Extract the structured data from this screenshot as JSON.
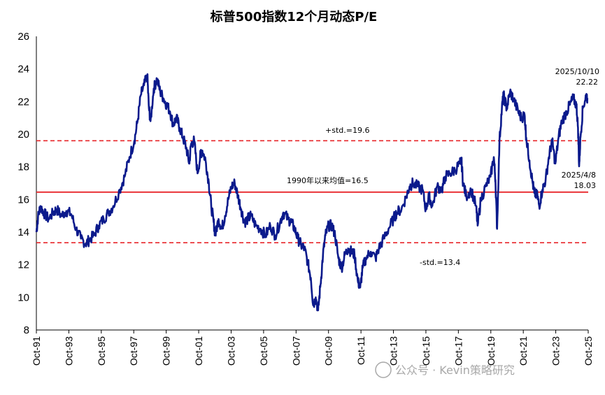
{
  "chart_data": {
    "type": "line",
    "title": "标普500指数12个月动态P/E",
    "ylim": [
      8,
      26
    ],
    "yticks": [
      "8",
      "10",
      "12",
      "14",
      "16",
      "18",
      "20",
      "22",
      "24",
      "26"
    ],
    "x_range": [
      1991.75,
      2025.83
    ],
    "xticks": [
      "Oct-91",
      "Oct-93",
      "Oct-95",
      "Oct-97",
      "Oct-99",
      "Oct-01",
      "Oct-03",
      "Oct-05",
      "Oct-07",
      "Oct-09",
      "Oct-11",
      "Oct-13",
      "Oct-15",
      "Oct-17",
      "Oct-19",
      "Oct-21",
      "Oct-23",
      "Oct-25"
    ],
    "reference_lines": {
      "upper": {
        "label": "+std.=19.6",
        "value": 19.6,
        "color": "#e8262a",
        "style": "dashed"
      },
      "mean": {
        "label": "1990年以来均值=16.5",
        "value": 16.45,
        "color": "#e8262a",
        "style": "solid"
      },
      "lower": {
        "label": "-std.=13.4",
        "value": 13.35,
        "color": "#e8262a",
        "style": "dashed"
      }
    },
    "annotations": [
      {
        "date": "2025/10/10",
        "value": "22.22"
      },
      {
        "date": "2025/4/8",
        "value": "18.03"
      }
    ],
    "series": [
      {
        "name": "S&P 500 forward 12M P/E",
        "color": "#0b1a8c",
        "points": [
          [
            1991.75,
            14.0
          ],
          [
            1991.85,
            14.9
          ],
          [
            1992.0,
            15.6
          ],
          [
            1992.2,
            15.2
          ],
          [
            1992.5,
            14.8
          ],
          [
            1992.8,
            15.2
          ],
          [
            1993.0,
            15.4
          ],
          [
            1993.3,
            15.0
          ],
          [
            1993.6,
            15.3
          ],
          [
            1993.9,
            15.1
          ],
          [
            1994.2,
            14.2
          ],
          [
            1994.5,
            13.6
          ],
          [
            1994.8,
            13.3
          ],
          [
            1995.0,
            13.5
          ],
          [
            1995.3,
            13.8
          ],
          [
            1995.6,
            14.4
          ],
          [
            1995.9,
            14.8
          ],
          [
            1996.2,
            15.2
          ],
          [
            1996.5,
            15.6
          ],
          [
            1996.9,
            16.6
          ],
          [
            1997.2,
            17.4
          ],
          [
            1997.5,
            18.6
          ],
          [
            1997.8,
            19.6
          ],
          [
            1998.0,
            20.8
          ],
          [
            1998.2,
            22.4
          ],
          [
            1998.4,
            23.0
          ],
          [
            1998.6,
            23.6
          ],
          [
            1998.7,
            21.6
          ],
          [
            1998.8,
            20.8
          ],
          [
            1999.0,
            22.8
          ],
          [
            1999.2,
            23.4
          ],
          [
            1999.4,
            22.6
          ],
          [
            1999.6,
            22.2
          ],
          [
            1999.8,
            21.8
          ],
          [
            2000.0,
            21.4
          ],
          [
            2000.2,
            20.6
          ],
          [
            2000.4,
            21.0
          ],
          [
            2000.6,
            20.4
          ],
          [
            2000.8,
            19.8
          ],
          [
            2001.0,
            19.2
          ],
          [
            2001.2,
            18.2
          ],
          [
            2001.3,
            19.4
          ],
          [
            2001.5,
            19.6
          ],
          [
            2001.7,
            17.6
          ],
          [
            2001.9,
            18.8
          ],
          [
            2002.0,
            19.0
          ],
          [
            2002.2,
            18.4
          ],
          [
            2002.4,
            17.0
          ],
          [
            2002.55,
            15.6
          ],
          [
            2002.7,
            14.6
          ],
          [
            2002.8,
            13.8
          ],
          [
            2003.0,
            14.8
          ],
          [
            2003.2,
            14.2
          ],
          [
            2003.4,
            15.0
          ],
          [
            2003.6,
            16.0
          ],
          [
            2003.8,
            16.8
          ],
          [
            2004.0,
            17.0
          ],
          [
            2004.2,
            16.2
          ],
          [
            2004.4,
            15.4
          ],
          [
            2004.6,
            14.6
          ],
          [
            2004.8,
            14.8
          ],
          [
            2005.0,
            15.0
          ],
          [
            2005.3,
            14.4
          ],
          [
            2005.6,
            14.2
          ],
          [
            2005.9,
            13.8
          ],
          [
            2006.2,
            14.4
          ],
          [
            2006.5,
            13.8
          ],
          [
            2006.8,
            14.6
          ],
          [
            2007.0,
            15.2
          ],
          [
            2007.3,
            14.8
          ],
          [
            2007.5,
            14.6
          ],
          [
            2007.7,
            14.2
          ],
          [
            2007.9,
            13.6
          ],
          [
            2008.1,
            13.2
          ],
          [
            2008.3,
            13.0
          ],
          [
            2008.5,
            12.2
          ],
          [
            2008.7,
            11.2
          ],
          [
            2008.85,
            9.5
          ],
          [
            2009.0,
            10.0
          ],
          [
            2009.15,
            9.2
          ],
          [
            2009.3,
            10.8
          ],
          [
            2009.45,
            12.6
          ],
          [
            2009.6,
            13.8
          ],
          [
            2009.8,
            14.4
          ],
          [
            2010.0,
            14.4
          ],
          [
            2010.2,
            13.8
          ],
          [
            2010.4,
            12.4
          ],
          [
            2010.6,
            11.8
          ],
          [
            2010.8,
            12.6
          ],
          [
            2011.0,
            13.0
          ],
          [
            2011.2,
            12.8
          ],
          [
            2011.4,
            12.6
          ],
          [
            2011.6,
            11.0
          ],
          [
            2011.75,
            10.6
          ],
          [
            2011.9,
            11.8
          ],
          [
            2012.1,
            12.4
          ],
          [
            2012.4,
            12.8
          ],
          [
            2012.7,
            12.4
          ],
          [
            2012.9,
            13.0
          ],
          [
            2013.2,
            13.6
          ],
          [
            2013.5,
            14.2
          ],
          [
            2013.8,
            14.8
          ],
          [
            2014.0,
            15.2
          ],
          [
            2014.3,
            15.4
          ],
          [
            2014.6,
            16.2
          ],
          [
            2014.8,
            16.8
          ],
          [
            2015.0,
            17.0
          ],
          [
            2015.3,
            16.8
          ],
          [
            2015.6,
            16.6
          ],
          [
            2015.8,
            15.4
          ],
          [
            2016.0,
            16.2
          ],
          [
            2016.2,
            15.6
          ],
          [
            2016.5,
            16.8
          ],
          [
            2016.8,
            16.6
          ],
          [
            2017.0,
            17.4
          ],
          [
            2017.3,
            17.6
          ],
          [
            2017.6,
            17.8
          ],
          [
            2017.9,
            18.2
          ],
          [
            2018.0,
            18.4
          ],
          [
            2018.1,
            17.0
          ],
          [
            2018.3,
            16.2
          ],
          [
            2018.6,
            16.6
          ],
          [
            2018.9,
            15.6
          ],
          [
            2019.0,
            14.4
          ],
          [
            2019.2,
            16.0
          ],
          [
            2019.5,
            16.8
          ],
          [
            2019.8,
            17.4
          ],
          [
            2020.0,
            18.6
          ],
          [
            2020.1,
            17.2
          ],
          [
            2020.2,
            14.2
          ],
          [
            2020.35,
            19.6
          ],
          [
            2020.5,
            21.6
          ],
          [
            2020.6,
            22.4
          ],
          [
            2020.8,
            21.6
          ],
          [
            2021.0,
            22.6
          ],
          [
            2021.2,
            22.2
          ],
          [
            2021.5,
            21.4
          ],
          [
            2021.7,
            21.0
          ],
          [
            2021.9,
            21.2
          ],
          [
            2022.0,
            19.8
          ],
          [
            2022.2,
            18.4
          ],
          [
            2022.4,
            17.0
          ],
          [
            2022.5,
            16.4
          ],
          [
            2022.7,
            16.2
          ],
          [
            2022.8,
            15.6
          ],
          [
            2023.0,
            16.6
          ],
          [
            2023.2,
            17.2
          ],
          [
            2023.4,
            18.6
          ],
          [
            2023.6,
            19.6
          ],
          [
            2023.8,
            18.2
          ],
          [
            2024.0,
            19.8
          ],
          [
            2024.2,
            20.8
          ],
          [
            2024.5,
            21.4
          ],
          [
            2024.7,
            21.8
          ],
          [
            2024.9,
            22.2
          ],
          [
            2025.1,
            21.8
          ],
          [
            2025.2,
            20.4
          ],
          [
            2025.27,
            18.03
          ],
          [
            2025.35,
            19.8
          ],
          [
            2025.5,
            21.6
          ],
          [
            2025.7,
            22.4
          ],
          [
            2025.78,
            22.22
          ]
        ]
      }
    ],
    "watermark": "公众号 · Kevin策略研究"
  }
}
